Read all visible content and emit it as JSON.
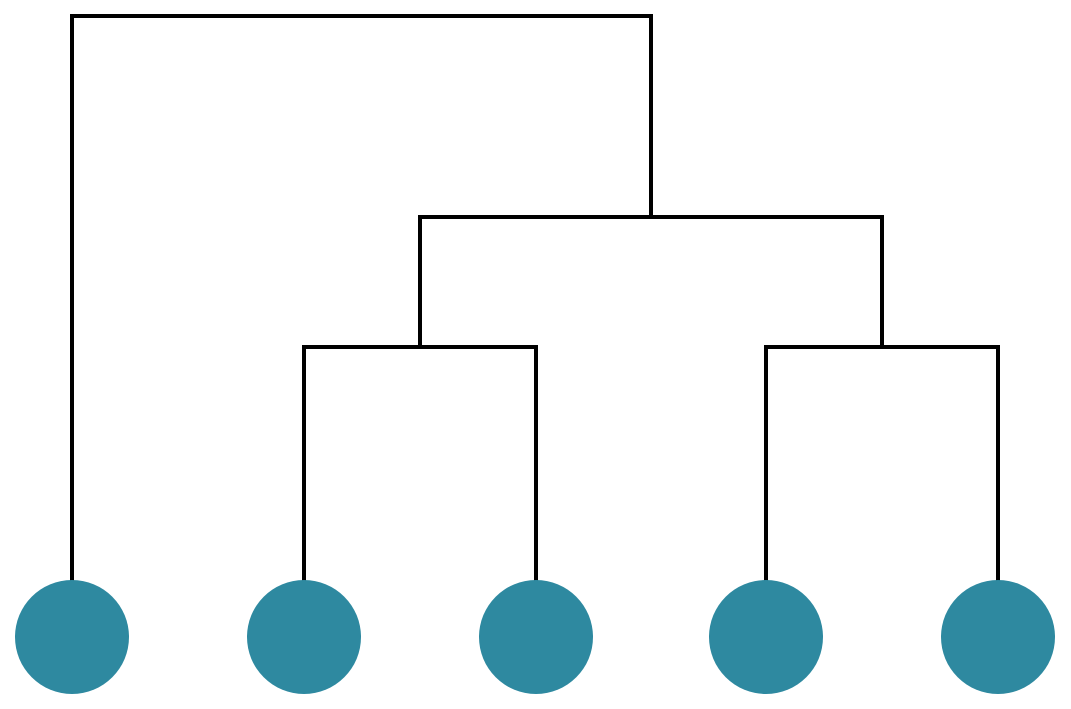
{
  "diagram": {
    "type": "dendrogram",
    "leaf_count": 5,
    "leaves": [
      {
        "id": "leaf-1"
      },
      {
        "id": "leaf-2"
      },
      {
        "id": "leaf-3"
      },
      {
        "id": "leaf-4"
      },
      {
        "id": "leaf-5"
      }
    ],
    "merges": [
      {
        "id": "merge-2-3",
        "children": [
          "leaf-2",
          "leaf-3"
        ]
      },
      {
        "id": "merge-4-5",
        "children": [
          "leaf-4",
          "leaf-5"
        ]
      },
      {
        "id": "merge-2345",
        "children": [
          "merge-2-3",
          "merge-4-5"
        ]
      },
      {
        "id": "merge-root",
        "children": [
          "leaf-1",
          "merge-2345"
        ]
      }
    ],
    "colors": {
      "leaf_fill": "#2e89a0",
      "branch_stroke": "#000000",
      "background": "#ffffff"
    }
  }
}
